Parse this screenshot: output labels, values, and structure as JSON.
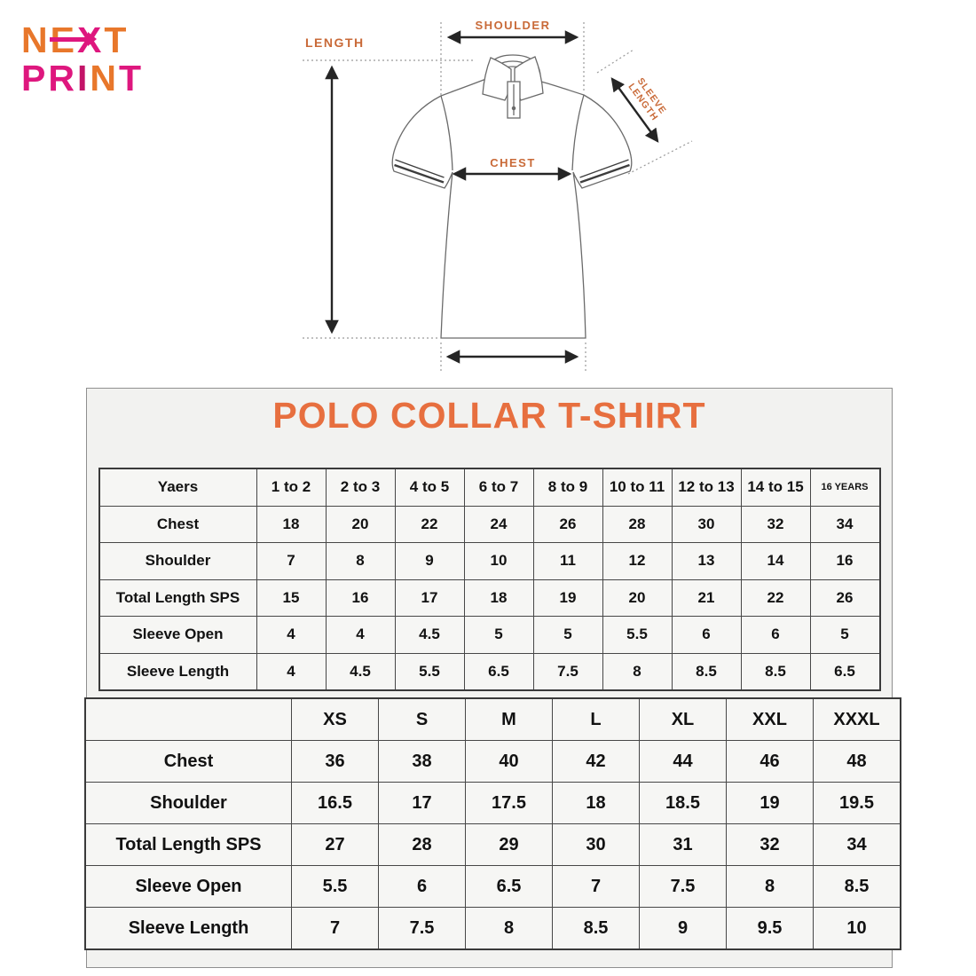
{
  "logo": {
    "line1": {
      "ne": "NE",
      "x": "X",
      "t": "T"
    },
    "line2": {
      "pr": "PR",
      "i": "I",
      "n": "N",
      "t": "T"
    }
  },
  "diagram": {
    "labels": {
      "length": "LENGTH",
      "shoulder": "SHOULDER",
      "chest": "CHEST",
      "sleeve_line1": "SLEEVE",
      "sleeve_line2": "LENGTH"
    }
  },
  "panel": {
    "title": "POLO COLLAR T-SHIRT"
  },
  "colors": {
    "logo_orange": "#e8772b",
    "logo_magenta": "#de177e",
    "title_orange": "#e76f3f",
    "diagram_label_orange": "#c96a38"
  },
  "tables": {
    "kids": {
      "header": {
        "label": "Yaers",
        "cols": [
          "1 to 2",
          "2 to 3",
          "4 to 5",
          "6 to 7",
          "8 to 9",
          "10 to 11",
          "12 to 13",
          "14 to 15",
          "16 YEARS"
        ]
      },
      "rows": [
        {
          "label": "Chest",
          "values": [
            "18",
            "20",
            "22",
            "24",
            "26",
            "28",
            "30",
            "32",
            "34"
          ]
        },
        {
          "label": "Shoulder",
          "values": [
            "7",
            "8",
            "9",
            "10",
            "11",
            "12",
            "13",
            "14",
            "16"
          ]
        },
        {
          "label": "Total Length SPS",
          "values": [
            "15",
            "16",
            "17",
            "18",
            "19",
            "20",
            "21",
            "22",
            "26"
          ]
        },
        {
          "label": "Sleeve Open",
          "values": [
            "4",
            "4",
            "4.5",
            "5",
            "5",
            "5.5",
            "6",
            "6",
            "5"
          ]
        },
        {
          "label": "Sleeve Length",
          "values": [
            "4",
            "4.5",
            "5.5",
            "6.5",
            "7.5",
            "8",
            "8.5",
            "8.5",
            "6.5"
          ]
        }
      ]
    },
    "adults": {
      "header": {
        "label": "",
        "cols": [
          "XS",
          "S",
          "M",
          "L",
          "XL",
          "XXL",
          "XXXL"
        ]
      },
      "rows": [
        {
          "label": "Chest",
          "values": [
            "36",
            "38",
            "40",
            "42",
            "44",
            "46",
            "48"
          ]
        },
        {
          "label": "Shoulder",
          "values": [
            "16.5",
            "17",
            "17.5",
            "18",
            "18.5",
            "19",
            "19.5"
          ]
        },
        {
          "label": "Total Length SPS",
          "values": [
            "27",
            "28",
            "29",
            "30",
            "31",
            "32",
            "34"
          ]
        },
        {
          "label": "Sleeve Open",
          "values": [
            "5.5",
            "6",
            "6.5",
            "7",
            "7.5",
            "8",
            "8.5"
          ]
        },
        {
          "label": "Sleeve Length",
          "values": [
            "7",
            "7.5",
            "8",
            "8.5",
            "9",
            "9.5",
            "10"
          ]
        }
      ]
    }
  }
}
